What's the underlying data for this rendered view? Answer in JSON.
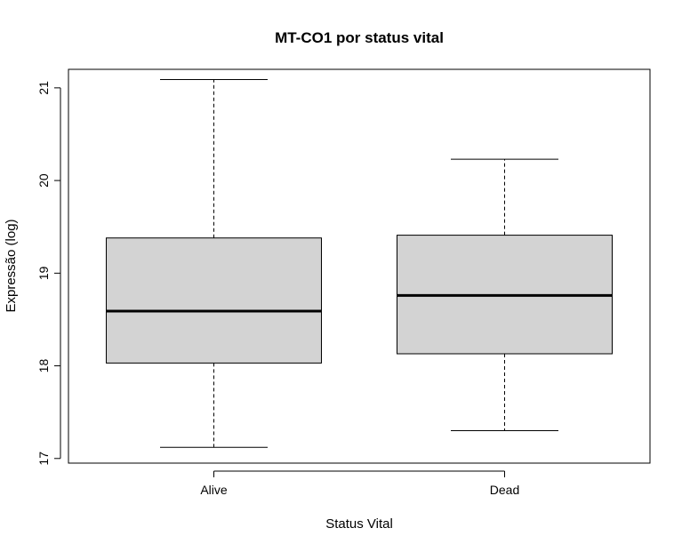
{
  "chart_data": {
    "type": "boxplot",
    "title": "MT-CO1 por status vital",
    "xlabel": "Status Vital",
    "ylabel": "Expressão (log)",
    "ylim": [
      16.95,
      21.2
    ],
    "yticks": [
      "17",
      "18",
      "19",
      "20",
      "21"
    ],
    "grid": false,
    "legend": "none",
    "box_fill": "#d3d3d3",
    "stroke": "#000000",
    "categories": [
      "Alive",
      "Dead"
    ],
    "boxes": [
      {
        "category": "Alive",
        "min": 17.12,
        "q1": 18.03,
        "median": 18.59,
        "q3": 19.38,
        "max": 21.09
      },
      {
        "category": "Dead",
        "min": 17.3,
        "q1": 18.13,
        "median": 18.76,
        "q3": 19.41,
        "max": 20.23
      }
    ]
  }
}
